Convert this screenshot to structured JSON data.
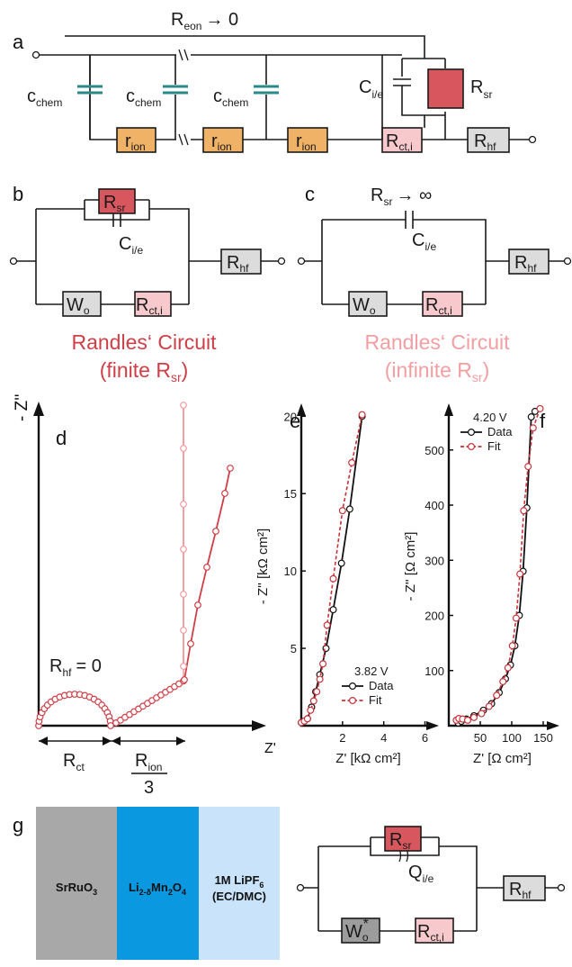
{
  "panels": {
    "a": "a",
    "b": "b",
    "c": "c",
    "d": "d",
    "e": "e",
    "f": "f",
    "g": "g"
  },
  "circuit_a": {
    "top_label": "R",
    "top_label_sub": "eon",
    "top_label_limit": "→ 0",
    "cap_label": "c",
    "cap_label_sub": "chem",
    "ion_label": "r",
    "ion_label_sub": "ion",
    "cie_label": "C",
    "cie_label_sub": "i/e",
    "rsr_label": "R",
    "rsr_label_sub": "sr",
    "rct_label": "R",
    "rct_label_sub": "ct,i",
    "rhf_label": "R",
    "rhf_label_sub": "hf"
  },
  "circuit_b": {
    "rsr": "R",
    "rsr_sub": "sr",
    "cie": "C",
    "cie_sub": "i/e",
    "rhf": "R",
    "rhf_sub": "hf",
    "wo": "W",
    "wo_sub": "o",
    "rct": "R",
    "rct_sub": "ct,i",
    "caption_1": "Randles‘ Circuit",
    "caption_2_pre": "(finite R",
    "caption_2_sub": "sr",
    "caption_2_post": ")"
  },
  "circuit_c": {
    "top": "R",
    "top_sub": "sr",
    "top_limit": "→ ∞",
    "cie": "C",
    "cie_sub": "i/e",
    "rhf": "R",
    "rhf_sub": "hf",
    "wo": "W",
    "wo_sub": "o",
    "rct": "R",
    "rct_sub": "ct,i",
    "caption_1": "Randles‘ Circuit",
    "caption_2_pre": "(infinite R",
    "caption_2_sub": "sr",
    "caption_2_post": ")"
  },
  "plot_d": {
    "ylabel": "- Z''",
    "xlabel": "Z'",
    "rhf_label": "R",
    "rhf_sub": "hf",
    "rhf_value": "= 0",
    "rct_label": "R",
    "rct_sub": "ct",
    "rion_label": "R",
    "rion_sub": "ion",
    "rion_den": "3"
  },
  "chart_data": [
    {
      "type": "line",
      "panel": "e",
      "xlabel": "Z' [kΩ cm²]",
      "ylabel": "- Z'' [kΩ cm²]",
      "xlim": [
        0,
        6.5
      ],
      "ylim": [
        0,
        20.6
      ],
      "xticks": [
        2,
        4,
        6
      ],
      "yticks": [
        5,
        10,
        15,
        20
      ],
      "legend_title": "3.82 V",
      "legend_position": "bottom-right",
      "series": [
        {
          "name": "Data",
          "color": "#111111",
          "x": [
            0.0,
            0.15,
            0.3,
            0.5,
            0.7,
            0.9,
            1.2,
            1.55,
            1.95,
            2.35,
            2.95
          ],
          "y": [
            0.2,
            0.3,
            0.45,
            1.2,
            2.2,
            3.3,
            5.0,
            7.5,
            10.5,
            14.0,
            20.0
          ]
        },
        {
          "name": "Fit",
          "color": "#c9333a",
          "x": [
            0.0,
            0.15,
            0.3,
            0.45,
            0.6,
            0.75,
            0.9,
            1.05,
            1.25,
            1.55,
            2.0,
            2.45,
            2.95
          ],
          "y": [
            0.2,
            0.3,
            0.45,
            1.0,
            1.6,
            2.2,
            3.0,
            4.0,
            6.5,
            9.5,
            13.9,
            17.0,
            20.1
          ]
        }
      ]
    },
    {
      "type": "line",
      "panel": "f",
      "xlabel": "Z' [Ω cm²]",
      "ylabel": "- Z'' [Ω cm²]",
      "xlim": [
        0,
        170
      ],
      "ylim": [
        0,
        578
      ],
      "xticks": [
        50,
        100,
        150
      ],
      "yticks": [
        100,
        200,
        300,
        400,
        500
      ],
      "legend_title": "4.20 V",
      "legend_position": "top-left",
      "series": [
        {
          "name": "Data",
          "color": "#111111",
          "x": [
            15,
            20,
            28,
            40,
            55,
            68,
            80,
            90,
            98,
            105,
            112,
            118,
            124,
            131,
            137
          ],
          "y": [
            5,
            8,
            12,
            18,
            28,
            40,
            60,
            85,
            110,
            145,
            200,
            280,
            395,
            560,
            570
          ]
        },
        {
          "name": "Fit",
          "color": "#c9333a",
          "x": [
            12,
            16,
            22,
            30,
            40,
            52,
            64,
            76,
            86,
            94,
            101,
            107,
            113,
            119,
            126,
            134,
            145
          ],
          "y": [
            10,
            13,
            12,
            10,
            15,
            22,
            35,
            55,
            80,
            105,
            145,
            195,
            275,
            390,
            470,
            540,
            575
          ]
        }
      ]
    }
  ],
  "panel_g": {
    "layer_1": "SrRuO",
    "layer_1_sub": "3",
    "layer_2_a": "Li",
    "layer_2_sub1": "2-δ",
    "layer_2_b": "Mn",
    "layer_2_sub2": "2",
    "layer_2_c": "O",
    "layer_2_sub3": "4",
    "layer_3_line1": "1M LiPF",
    "layer_3_sub": "6",
    "layer_3_line2": "(EC/DMC)",
    "colors": {
      "layer_1": "#a8a8a8",
      "layer_2": "#0a98e0",
      "layer_3": "#c8e3fa"
    },
    "rsr": "R",
    "rsr_sub": "sr",
    "q": "Q",
    "q_sub": "i/e",
    "rhf": "R",
    "rhf_sub": "hf",
    "wo": "W",
    "wo_sub": "o",
    "wo_star": "*",
    "rct": "R",
    "rct_sub": "ct,i"
  },
  "colors": {
    "orange": "#f0b266",
    "pink": "#f7c9cc",
    "red": "#d8575e",
    "gray": "#dcdcdc",
    "darkgray": "#9c9c9c",
    "cap": "#2a8a88",
    "finite": "#cf3f47",
    "infinite": "#f29ea3"
  }
}
